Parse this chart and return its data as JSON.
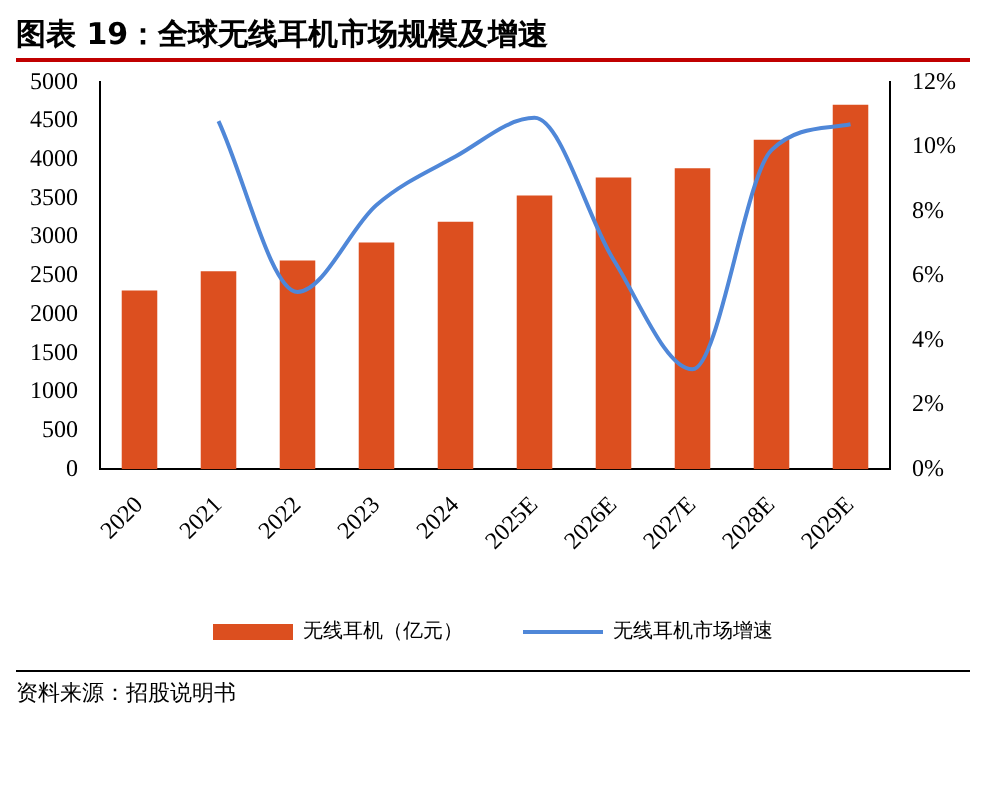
{
  "chart_data": {
    "type": "bar",
    "title": "图表 19：全球无线耳机市场规模及增速",
    "categories": [
      "2020",
      "2021",
      "2022",
      "2023",
      "2024",
      "2025E",
      "2026E",
      "2027E",
      "2028E",
      "2029E"
    ],
    "series": [
      {
        "name": "无线耳机（亿元）",
        "color": "#dc4f1f",
        "values": [
          2310,
          2560,
          2700,
          2930,
          3200,
          3540,
          3770,
          3890,
          4260,
          4710
        ]
      },
      {
        "name": "无线耳机市场增速",
        "type": "line",
        "axis": "y2",
        "color": "#4f87d8",
        "values": [
          null,
          10.8,
          5.5,
          8.2,
          9.7,
          10.9,
          6.5,
          3.1,
          9.9,
          10.7
        ]
      }
    ],
    "ylim": [
      0,
      5000
    ],
    "yticks": [
      0,
      500,
      1000,
      1500,
      2000,
      2500,
      3000,
      3500,
      4000,
      4500,
      5000
    ],
    "y2lim": [
      0,
      12
    ],
    "y2ticks": [
      {
        "value": 0,
        "label": "0%"
      },
      {
        "value": 2,
        "label": "2%"
      },
      {
        "value": 4,
        "label": "4%"
      },
      {
        "value": 6,
        "label": "6%"
      },
      {
        "value": 8,
        "label": "8%"
      },
      {
        "value": 10,
        "label": "10%"
      },
      {
        "value": 12,
        "label": "12%"
      }
    ],
    "grid": false,
    "legend": "bottom",
    "marker": "none",
    "annotations": [
      "资料来源：招股说明书"
    ]
  }
}
